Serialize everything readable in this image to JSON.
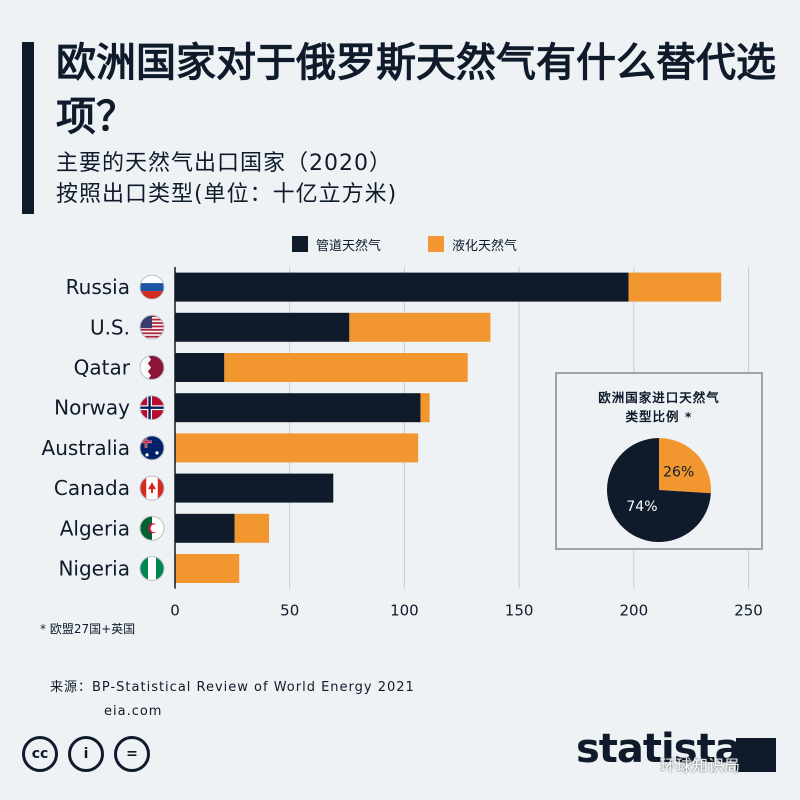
{
  "title": "欧洲国家对于俄罗斯天然气有什么替代选项？",
  "subtitle_line1": "主要的天然气出口国家（2020）",
  "subtitle_line2": "按照出口类型(单位：十亿立方米)",
  "legend": {
    "pipeline": "管道天然气",
    "lng": "液化天然气"
  },
  "colors": {
    "pipeline": "#0f1b2b",
    "lng": "#f2962f",
    "grid": "#c6ccd2",
    "text": "#0f1b2b"
  },
  "flags": [
    "russia-flag",
    "us-flag",
    "qatar-flag",
    "norway-flag",
    "australia-flag",
    "canada-flag",
    "algeria-flag",
    "nigeria-flag"
  ],
  "chart_data": [
    {
      "type": "bar",
      "orientation": "horizontal",
      "stacked": true,
      "categories": [
        "Russia",
        "U.S.",
        "Qatar",
        "Norway",
        "Australia",
        "Canada",
        "Algeria",
        "Nigeria"
      ],
      "series": [
        {
          "name": "管道天然气",
          "values": [
            197.7,
            76,
            21.5,
            107,
            0,
            69,
            26,
            0
          ]
        },
        {
          "name": "液化天然气",
          "values": [
            40.4,
            61.5,
            106.1,
            4,
            106,
            0,
            15,
            28
          ]
        }
      ],
      "xlim": [
        0,
        255
      ],
      "xticks": [
        0,
        50,
        100,
        150,
        200,
        250
      ],
      "grid": true,
      "legend_position": "top"
    },
    {
      "type": "pie",
      "title_line1": "欧洲国家进口天然气",
      "title_line2": "类型比例 *",
      "labels": [
        "管道天然气",
        "液化天然气"
      ],
      "values": [
        74,
        26
      ],
      "value_labels": [
        "74%",
        "26%"
      ]
    }
  ],
  "footnote": "* 欧盟27国+英国",
  "source_line1": "来源：BP-Statistical Review of World Energy 2021",
  "source_line2": "eia.com",
  "cc_icons": [
    "cc",
    "i",
    "="
  ],
  "logo_text": "statista",
  "watermark_text": "环球知识局"
}
